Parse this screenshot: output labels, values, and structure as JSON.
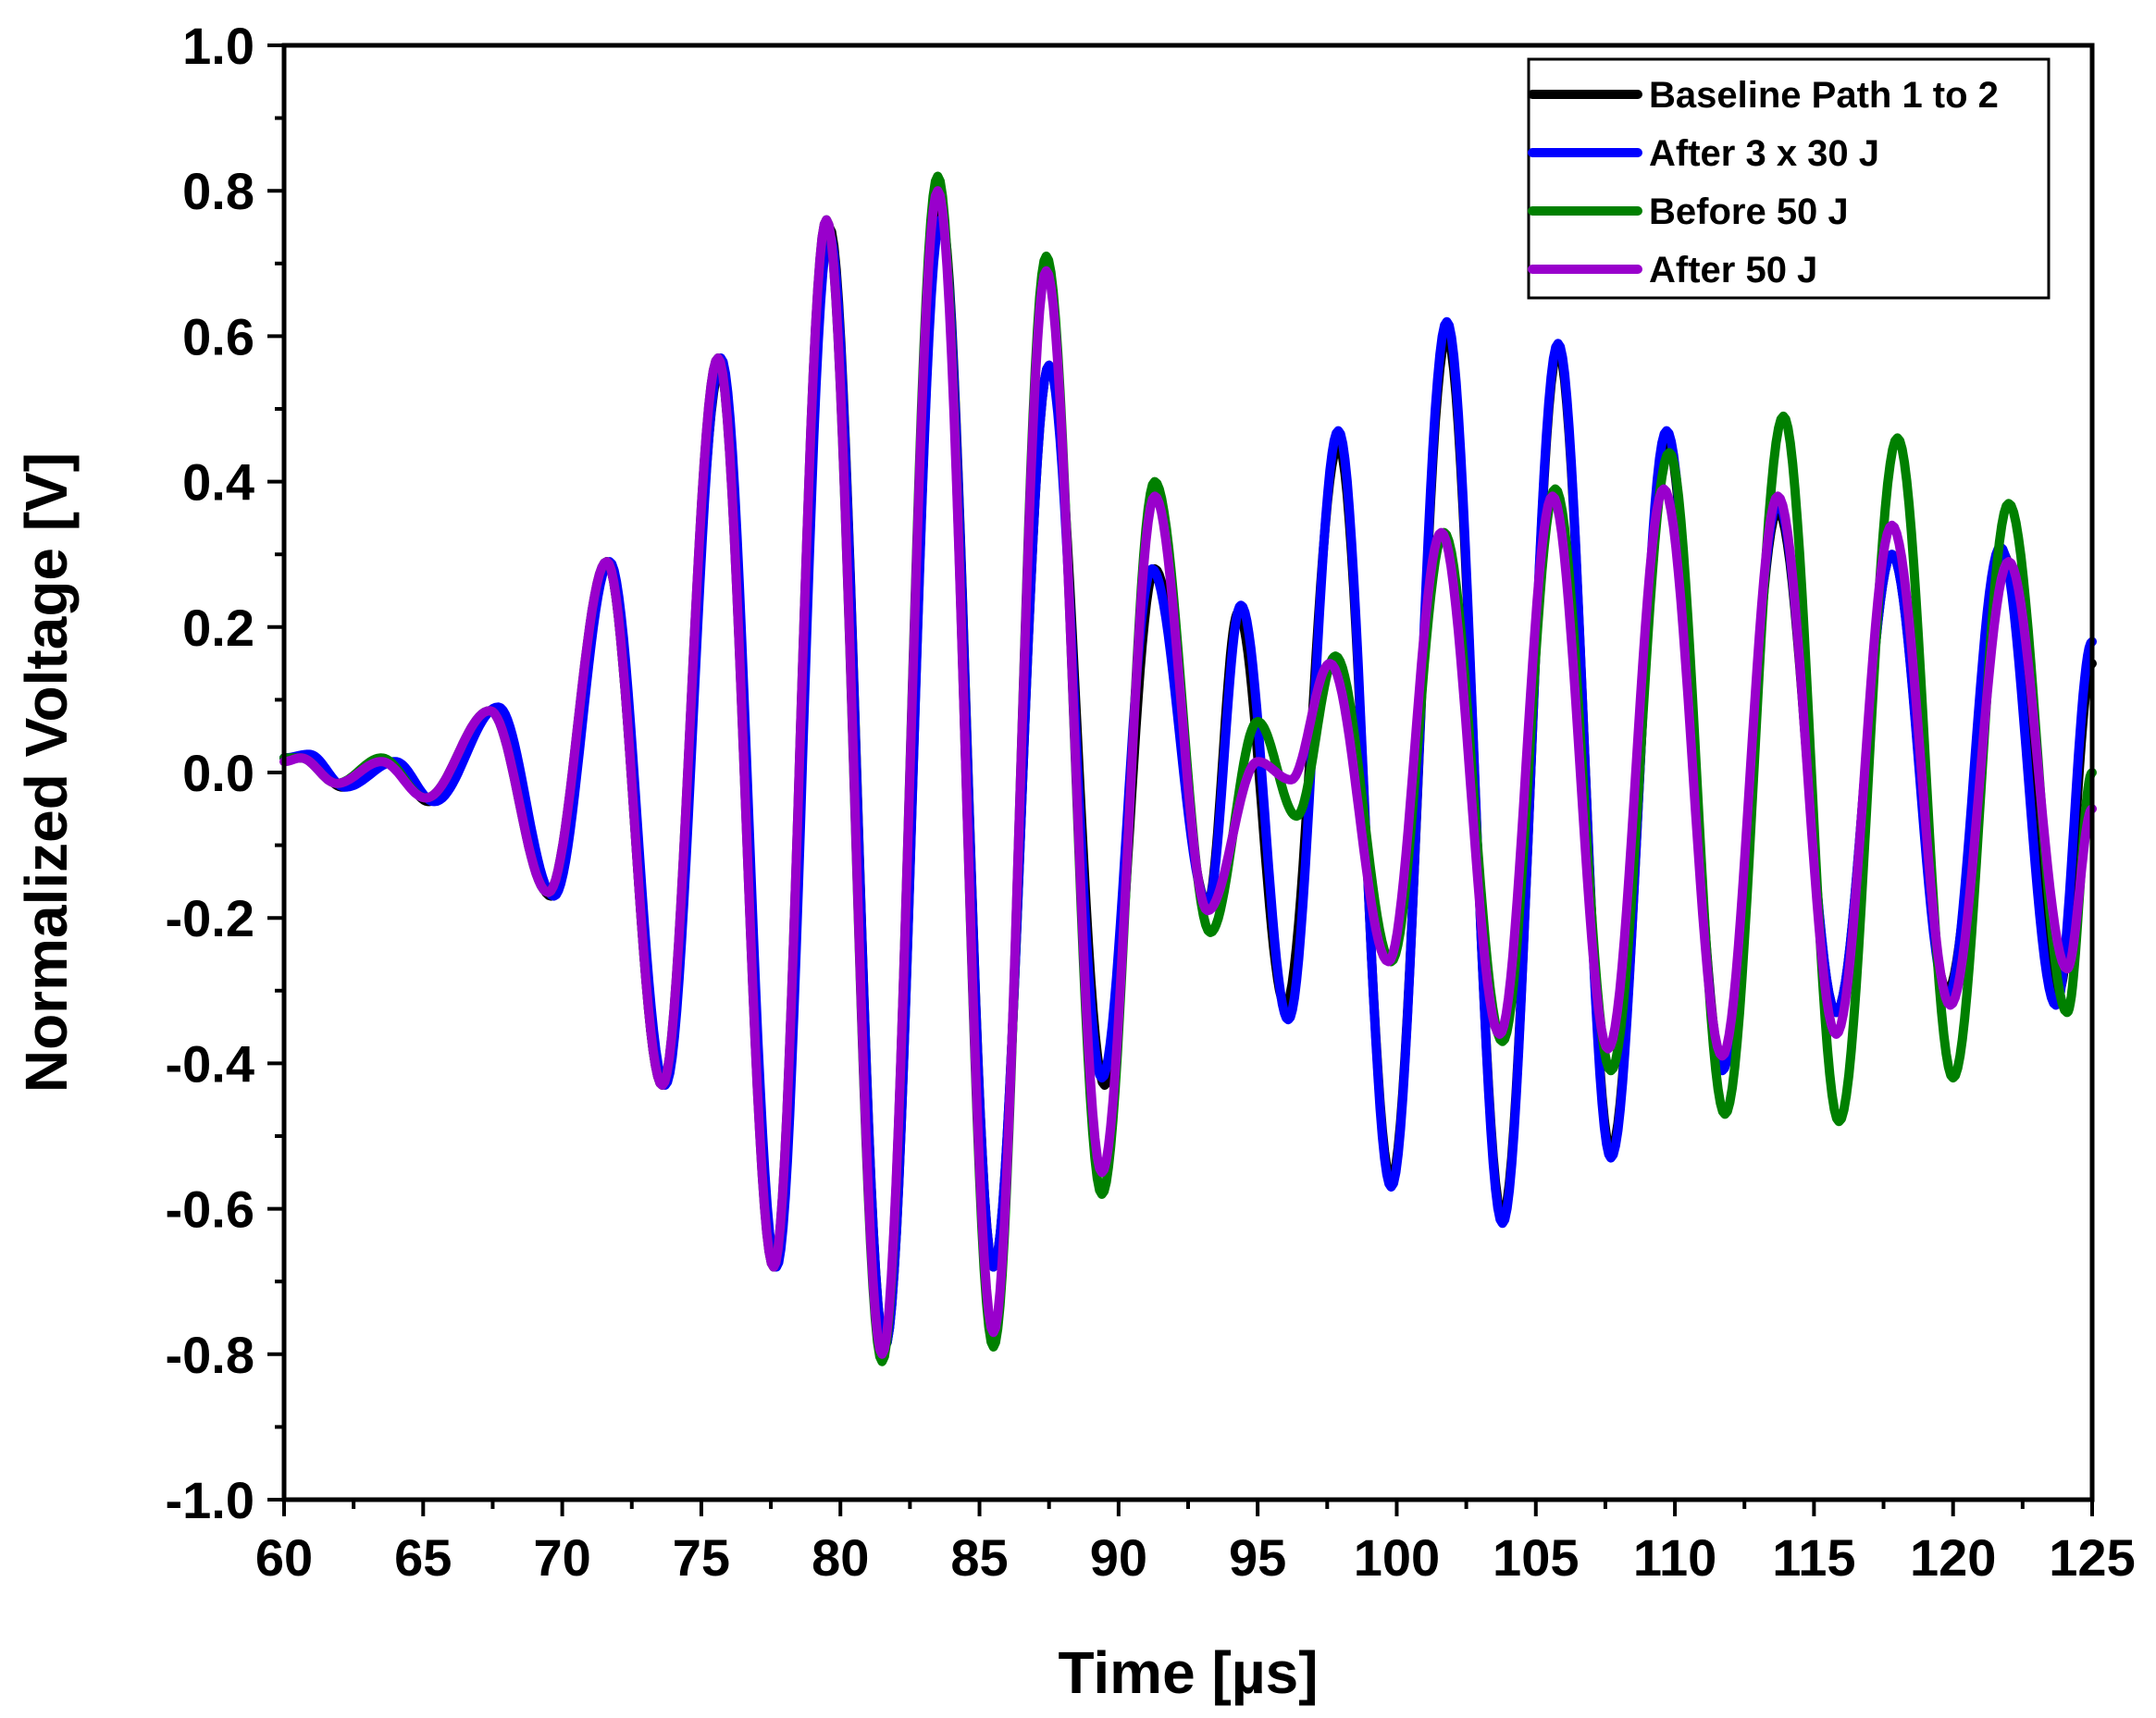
{
  "chart_data": {
    "type": "line",
    "title": "",
    "xlabel": "Time [µs]",
    "ylabel": "Normalized Voltage [V]",
    "xlim": [
      60,
      125
    ],
    "ylim": [
      -1.0,
      1.0
    ],
    "x_ticks": [
      60,
      65,
      70,
      75,
      80,
      85,
      90,
      95,
      100,
      105,
      110,
      115,
      120,
      125
    ],
    "x_tick_labels": [
      "60",
      "65",
      "70",
      "75",
      "80",
      "85",
      "90",
      "95",
      "100",
      "105",
      "110",
      "115",
      "120",
      "125"
    ],
    "y_ticks": [
      -1.0,
      -0.8,
      -0.6,
      -0.4,
      -0.2,
      0.0,
      0.2,
      0.4,
      0.6,
      0.8,
      1.0
    ],
    "y_tick_labels": [
      "-1.0",
      "-0.8",
      "-0.6",
      "-0.4",
      "-0.2",
      "0.0",
      "0.2",
      "0.4",
      "0.6",
      "0.8",
      "1.0"
    ],
    "grid": false,
    "legend_position": "top-right",
    "series": [
      {
        "name": "Baseline Path 1 to 2",
        "color": "#000000",
        "extrema": [
          [
            60.0,
            0.02
          ],
          [
            60.8,
            0.02
          ],
          [
            62.1,
            -0.02
          ],
          [
            63.8,
            0.015
          ],
          [
            65.2,
            -0.04
          ],
          [
            67.5,
            0.085
          ],
          [
            69.6,
            -0.17
          ],
          [
            71.6,
            0.29
          ],
          [
            73.6,
            -0.43
          ],
          [
            75.7,
            0.56
          ],
          [
            77.6,
            -0.68
          ],
          [
            79.6,
            0.75
          ],
          [
            81.6,
            -0.79
          ],
          [
            83.6,
            0.77
          ],
          [
            85.5,
            -0.68
          ],
          [
            87.5,
            0.56
          ],
          [
            89.5,
            -0.43
          ],
          [
            91.3,
            0.28
          ],
          [
            93.2,
            -0.18
          ],
          [
            94.3,
            0.22
          ],
          [
            96.0,
            -0.32
          ],
          [
            97.9,
            0.45
          ],
          [
            99.8,
            -0.56
          ],
          [
            101.8,
            0.6
          ],
          [
            103.8,
            -0.61
          ],
          [
            105.8,
            0.58
          ],
          [
            107.7,
            -0.52
          ],
          [
            109.7,
            0.46
          ],
          [
            111.7,
            -0.4
          ],
          [
            113.7,
            0.36
          ],
          [
            115.8,
            -0.33
          ],
          [
            117.8,
            0.3
          ],
          [
            119.8,
            -0.3
          ],
          [
            121.8,
            0.3
          ],
          [
            123.8,
            -0.3
          ],
          [
            125.0,
            0.15
          ]
        ]
      },
      {
        "name": "After 3 x 30 J",
        "color": "#0000ff",
        "extrema": [
          [
            60.0,
            0.02
          ],
          [
            60.9,
            0.025
          ],
          [
            62.2,
            -0.02
          ],
          [
            64.0,
            0.015
          ],
          [
            65.4,
            -0.04
          ],
          [
            67.7,
            0.09
          ],
          [
            69.7,
            -0.17
          ],
          [
            71.7,
            0.29
          ],
          [
            73.7,
            -0.43
          ],
          [
            75.7,
            0.57
          ],
          [
            77.7,
            -0.68
          ],
          [
            79.6,
            0.74
          ],
          [
            81.6,
            -0.79
          ],
          [
            83.6,
            0.76
          ],
          [
            85.5,
            -0.68
          ],
          [
            87.5,
            0.56
          ],
          [
            89.4,
            -0.42
          ],
          [
            91.2,
            0.28
          ],
          [
            93.2,
            -0.18
          ],
          [
            94.4,
            0.23
          ],
          [
            96.1,
            -0.34
          ],
          [
            97.9,
            0.47
          ],
          [
            99.8,
            -0.57
          ],
          [
            101.8,
            0.62
          ],
          [
            103.8,
            -0.62
          ],
          [
            105.8,
            0.59
          ],
          [
            107.7,
            -0.53
          ],
          [
            109.7,
            0.47
          ],
          [
            111.7,
            -0.41
          ],
          [
            113.7,
            0.37
          ],
          [
            115.8,
            -0.33
          ],
          [
            117.8,
            0.3
          ],
          [
            119.8,
            -0.31
          ],
          [
            121.7,
            0.31
          ],
          [
            123.7,
            -0.32
          ],
          [
            125.0,
            0.18
          ]
        ]
      },
      {
        "name": "Before 50 J",
        "color": "#008000",
        "extrema": [
          [
            60.0,
            0.02
          ],
          [
            60.6,
            0.02
          ],
          [
            61.9,
            -0.015
          ],
          [
            63.5,
            0.02
          ],
          [
            65.1,
            -0.035
          ],
          [
            67.4,
            0.085
          ],
          [
            69.5,
            -0.165
          ],
          [
            71.6,
            0.29
          ],
          [
            73.6,
            -0.43
          ],
          [
            75.6,
            0.57
          ],
          [
            77.6,
            -0.68
          ],
          [
            79.5,
            0.76
          ],
          [
            81.5,
            -0.81
          ],
          [
            83.5,
            0.82
          ],
          [
            85.5,
            -0.79
          ],
          [
            87.4,
            0.71
          ],
          [
            89.4,
            -0.58
          ],
          [
            91.3,
            0.4
          ],
          [
            93.3,
            -0.22
          ],
          [
            95.0,
            0.07
          ],
          [
            96.4,
            -0.06
          ],
          [
            97.8,
            0.16
          ],
          [
            99.8,
            -0.26
          ],
          [
            101.7,
            0.33
          ],
          [
            103.8,
            -0.37
          ],
          [
            105.7,
            0.39
          ],
          [
            107.7,
            -0.41
          ],
          [
            109.8,
            0.44
          ],
          [
            111.8,
            -0.47
          ],
          [
            113.9,
            0.49
          ],
          [
            115.9,
            -0.48
          ],
          [
            118.0,
            0.46
          ],
          [
            120.0,
            -0.42
          ],
          [
            122.0,
            0.37
          ],
          [
            124.1,
            -0.33
          ],
          [
            125.0,
            0.0
          ]
        ]
      },
      {
        "name": "After 50 J",
        "color": "#9900cc",
        "extrema": [
          [
            60.0,
            0.015
          ],
          [
            60.6,
            0.02
          ],
          [
            61.9,
            -0.015
          ],
          [
            63.5,
            0.015
          ],
          [
            65.1,
            -0.035
          ],
          [
            67.4,
            0.085
          ],
          [
            69.5,
            -0.165
          ],
          [
            71.6,
            0.29
          ],
          [
            73.6,
            -0.43
          ],
          [
            75.6,
            0.57
          ],
          [
            77.6,
            -0.68
          ],
          [
            79.5,
            0.76
          ],
          [
            81.5,
            -0.8
          ],
          [
            83.5,
            0.8
          ],
          [
            85.5,
            -0.77
          ],
          [
            87.4,
            0.69
          ],
          [
            89.4,
            -0.55
          ],
          [
            91.3,
            0.38
          ],
          [
            93.2,
            -0.19
          ],
          [
            95.0,
            0.015
          ],
          [
            96.2,
            -0.01
          ],
          [
            97.6,
            0.15
          ],
          [
            99.7,
            -0.26
          ],
          [
            101.6,
            0.33
          ],
          [
            103.7,
            -0.36
          ],
          [
            105.6,
            0.38
          ],
          [
            107.6,
            -0.38
          ],
          [
            109.6,
            0.39
          ],
          [
            111.7,
            -0.39
          ],
          [
            113.7,
            0.38
          ],
          [
            115.8,
            -0.36
          ],
          [
            117.8,
            0.34
          ],
          [
            119.9,
            -0.32
          ],
          [
            122.0,
            0.29
          ],
          [
            124.1,
            -0.27
          ],
          [
            125.0,
            -0.05
          ]
        ]
      }
    ]
  }
}
